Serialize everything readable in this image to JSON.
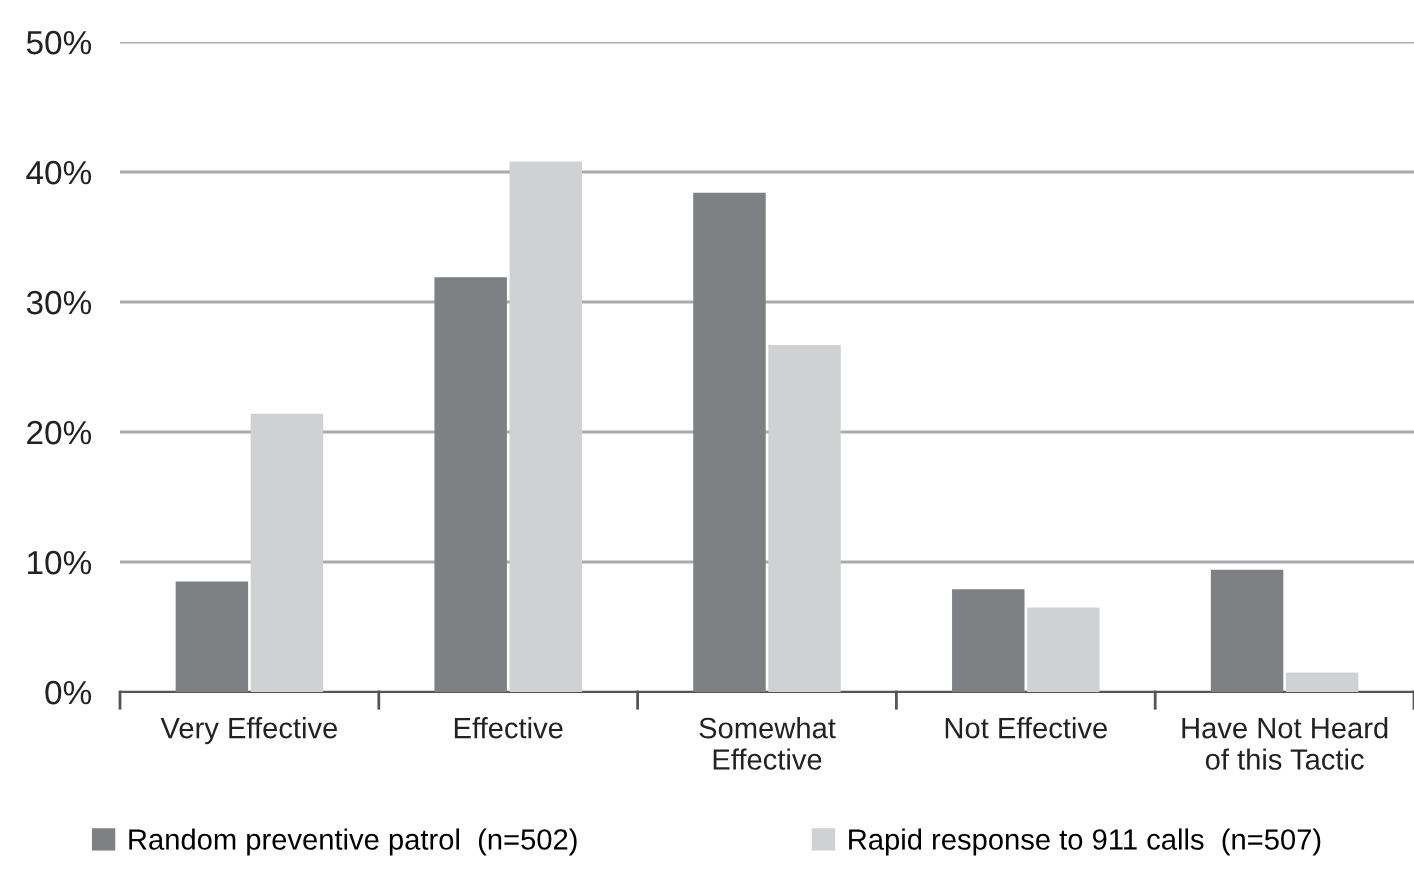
{
  "chart_data": {
    "type": "bar",
    "categories": [
      "Very Effective",
      "Effective",
      "Somewhat\nEffective",
      "Not Effective",
      "Have Not Heard\nof this Tactic"
    ],
    "series": [
      {
        "name": "Random preventive patrol  (n=502)",
        "color": "#7f8084",
        "values": [
          8.5,
          31.9,
          38.4,
          7.9,
          9.4
        ]
      },
      {
        "name": "Rapid response to 911 calls  (n=507)",
        "color": "#d0d1d3",
        "values": [
          21.4,
          40.8,
          26.7,
          6.5,
          1.5
        ]
      }
    ],
    "ylim": [
      0,
      50
    ],
    "yticks": [
      {
        "value": 0,
        "label": "0%"
      },
      {
        "value": 10,
        "label": "10%"
      },
      {
        "value": 20,
        "label": "20%"
      },
      {
        "value": 30,
        "label": "30%"
      },
      {
        "value": 40,
        "label": "40%"
      },
      {
        "value": 50,
        "label": "50%"
      }
    ],
    "grid": "y",
    "legend": "bottom"
  }
}
